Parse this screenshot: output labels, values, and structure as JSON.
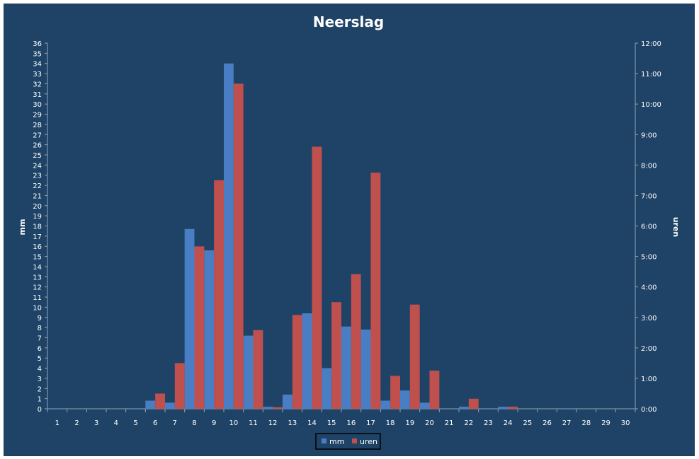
{
  "colors": {
    "background": "#1f4366",
    "border": "#2a3a4a",
    "axis": "#8fa3b8",
    "text": "#ffffff",
    "mm": "#4a7ec4",
    "uren": "#c0504d"
  },
  "chart_data": {
    "type": "bar",
    "title": "Neerslag",
    "ylabel": "mm",
    "y2label": "uren",
    "ylim": [
      0,
      36
    ],
    "y2lim": [
      0,
      12
    ],
    "grid": false,
    "legend_position": "bottom",
    "categories": [
      "1",
      "2",
      "3",
      "4",
      "5",
      "6",
      "7",
      "8",
      "9",
      "10",
      "11",
      "12",
      "13",
      "14",
      "15",
      "16",
      "17",
      "18",
      "19",
      "20",
      "21",
      "22",
      "23",
      "24",
      "25",
      "26",
      "27",
      "28",
      "29",
      "30"
    ],
    "y_ticks": [
      "0",
      "1",
      "2",
      "3",
      "4",
      "5",
      "6",
      "7",
      "8",
      "9",
      "10",
      "11",
      "12",
      "13",
      "14",
      "15",
      "16",
      "17",
      "18",
      "19",
      "20",
      "21",
      "22",
      "23",
      "24",
      "25",
      "26",
      "27",
      "28",
      "29",
      "30",
      "31",
      "32",
      "33",
      "34",
      "35",
      "36"
    ],
    "y2_ticks": [
      "0:00",
      "1:00",
      "2:00",
      "3:00",
      "4:00",
      "5:00",
      "6:00",
      "7:00",
      "8:00",
      "9:00",
      "10:00",
      "11:00",
      "12:00"
    ],
    "series": [
      {
        "name": "mm",
        "axis": "left",
        "values": [
          0,
          0,
          0,
          0,
          0,
          0.8,
          0.6,
          17.7,
          15.6,
          34.0,
          7.2,
          0.2,
          1.4,
          9.4,
          4.0,
          8.1,
          7.8,
          0.8,
          1.8,
          0.6,
          0,
          0.2,
          0,
          0.2,
          0,
          0,
          0,
          0,
          0,
          0
        ]
      },
      {
        "name": "uren",
        "axis": "right",
        "values": [
          0,
          0,
          0,
          0,
          0,
          0.5,
          1.5,
          5.33,
          7.5,
          10.67,
          2.58,
          0.05,
          3.08,
          8.6,
          3.5,
          4.42,
          7.75,
          1.08,
          3.42,
          1.25,
          0,
          0.33,
          0,
          0.07,
          0,
          0,
          0,
          0,
          0,
          0
        ]
      }
    ]
  }
}
